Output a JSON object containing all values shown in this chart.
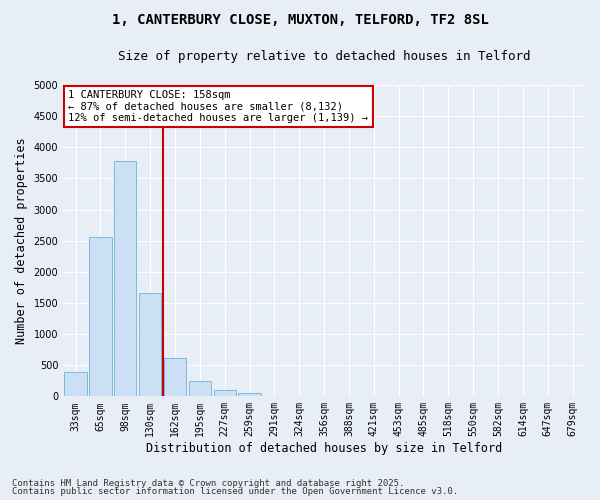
{
  "title_line1": "1, CANTERBURY CLOSE, MUXTON, TELFORD, TF2 8SL",
  "title_line2": "Size of property relative to detached houses in Telford",
  "xlabel": "Distribution of detached houses by size in Telford",
  "ylabel": "Number of detached properties",
  "categories": [
    "33sqm",
    "65sqm",
    "98sqm",
    "130sqm",
    "162sqm",
    "195sqm",
    "227sqm",
    "259sqm",
    "291sqm",
    "324sqm",
    "356sqm",
    "388sqm",
    "421sqm",
    "453sqm",
    "485sqm",
    "518sqm",
    "550sqm",
    "582sqm",
    "614sqm",
    "647sqm",
    "679sqm"
  ],
  "values": [
    390,
    2560,
    3780,
    1660,
    620,
    240,
    100,
    60,
    0,
    0,
    0,
    0,
    0,
    0,
    0,
    0,
    0,
    0,
    0,
    0,
    0
  ],
  "bar_color": "#cce0f5",
  "bar_edge_color": "#7bbcdc",
  "vline_pos": 3.5,
  "vline_color": "#cc0000",
  "annotation_box_text": "1 CANTERBURY CLOSE: 158sqm\n← 87% of detached houses are smaller (8,132)\n12% of semi-detached houses are larger (1,139) →",
  "annotation_box_color": "#cc0000",
  "annotation_box_fill": "#ffffff",
  "footnote1": "Contains HM Land Registry data © Crown copyright and database right 2025.",
  "footnote2": "Contains public sector information licensed under the Open Government Licence v3.0.",
  "ylim": [
    0,
    5000
  ],
  "yticks": [
    0,
    500,
    1000,
    1500,
    2000,
    2500,
    3000,
    3500,
    4000,
    4500,
    5000
  ],
  "background_color": "#e8eef5",
  "plot_background": "#e8eef5",
  "grid_color": "#ffffff",
  "title_fontsize": 10,
  "subtitle_fontsize": 9,
  "axis_label_fontsize": 8.5,
  "tick_fontsize": 7,
  "annot_fontsize": 7.5,
  "footnote_fontsize": 6.5
}
